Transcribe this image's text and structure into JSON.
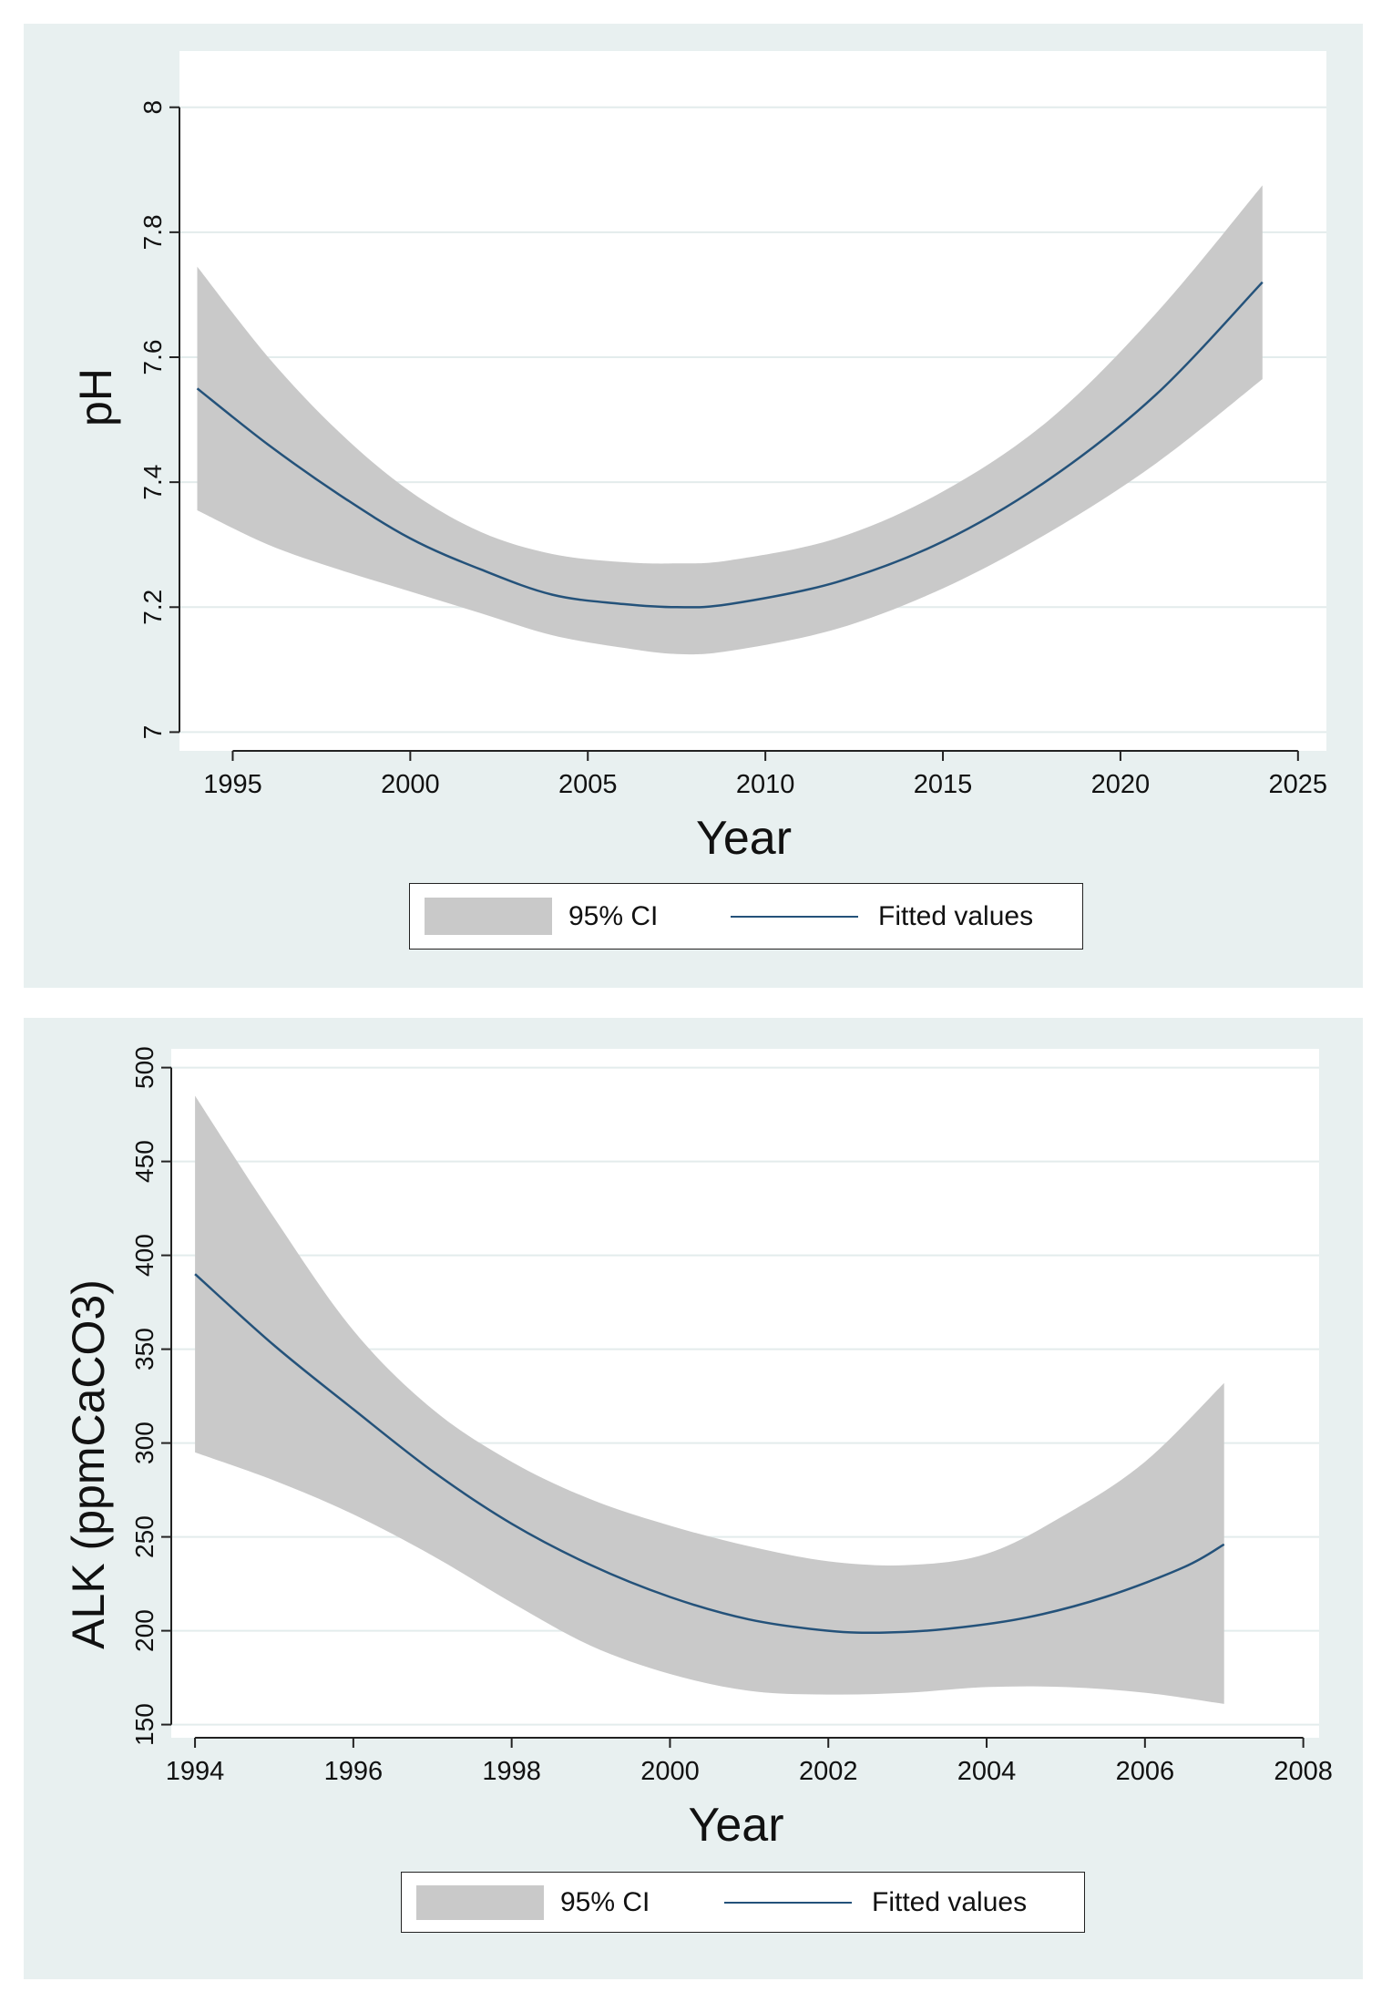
{
  "chart_data": [
    {
      "type": "line",
      "xlabel": "Year",
      "ylabel": "pH",
      "xlim": [
        1993.5,
        2025.8
      ],
      "ylim": [
        6.97,
        8.09
      ],
      "xticks": [
        1995,
        2000,
        2005,
        2010,
        2015,
        2020,
        2025
      ],
      "xtick_labels": [
        "1995",
        "2000",
        "2005",
        "2010",
        "2015",
        "2020",
        "2025"
      ],
      "yticks": [
        7,
        7.2,
        7.4,
        7.6,
        7.8,
        8
      ],
      "ytick_labels": [
        "7",
        "7.2",
        "7.4",
        "7.6",
        "7.8",
        "8"
      ],
      "grid": true,
      "legend": {
        "position": "bottom",
        "ci_label": "95% CI",
        "fit_label": "Fitted values"
      },
      "series": [
        {
          "name": "Fitted values",
          "x": [
            1994,
            1996,
            1998,
            2000,
            2002,
            2004,
            2006,
            2007.5,
            2009,
            2012,
            2015,
            2018,
            2021,
            2024
          ],
          "y": [
            7.55,
            7.46,
            7.38,
            7.31,
            7.26,
            7.22,
            7.205,
            7.2,
            7.205,
            7.24,
            7.305,
            7.405,
            7.54,
            7.72
          ]
        },
        {
          "name": "95% CI upper",
          "x": [
            1994,
            1996,
            1998,
            2000,
            2002,
            2004,
            2006,
            2007.5,
            2009,
            2012,
            2015,
            2018,
            2021,
            2024
          ],
          "y": [
            7.745,
            7.6,
            7.48,
            7.385,
            7.32,
            7.285,
            7.272,
            7.27,
            7.275,
            7.31,
            7.385,
            7.5,
            7.67,
            7.875
          ]
        },
        {
          "name": "95% CI lower",
          "x": [
            1994,
            1996,
            1998,
            2000,
            2002,
            2004,
            2006,
            2007.5,
            2009,
            2012,
            2015,
            2018,
            2021,
            2024
          ],
          "y": [
            7.355,
            7.3,
            7.26,
            7.225,
            7.19,
            7.155,
            7.135,
            7.125,
            7.13,
            7.165,
            7.23,
            7.32,
            7.43,
            7.565
          ]
        }
      ]
    },
    {
      "type": "line",
      "xlabel": "Year",
      "ylabel": "ALK (ppmCaCO3)",
      "xlim": [
        1993.7,
        2008.2
      ],
      "ylim": [
        143,
        510
      ],
      "xticks": [
        1994,
        1996,
        1998,
        2000,
        2002,
        2004,
        2006,
        2008
      ],
      "xtick_labels": [
        "1994",
        "1996",
        "1998",
        "2000",
        "2002",
        "2004",
        "2006",
        "2008"
      ],
      "yticks": [
        150,
        200,
        250,
        300,
        350,
        400,
        450,
        500
      ],
      "ytick_labels": [
        "150",
        "200",
        "250",
        "300",
        "350",
        "400",
        "450",
        "500"
      ],
      "grid": true,
      "legend": {
        "position": "bottom",
        "ci_label": "95% CI",
        "fit_label": "Fitted values"
      },
      "series": [
        {
          "name": "Fitted values",
          "x": [
            1994,
            1995,
            1996,
            1997,
            1998,
            1999,
            2000,
            2001,
            2002,
            2002.7,
            2003.5,
            2004.5,
            2005.5,
            2006.5,
            2007
          ],
          "y": [
            390,
            352,
            318,
            285,
            257,
            235,
            218,
            206,
            200,
            199,
            201,
            207,
            218,
            234,
            246
          ]
        },
        {
          "name": "95% CI upper",
          "x": [
            1994,
            1995,
            1996,
            1997,
            1998,
            1999,
            2000,
            2001,
            2002,
            2003,
            2004,
            2005,
            2006,
            2007
          ],
          "y": [
            485,
            420,
            360,
            318,
            290,
            270,
            256,
            245,
            237,
            235,
            241,
            262,
            290,
            332
          ]
        },
        {
          "name": "95% CI lower",
          "x": [
            1994,
            1995,
            1996,
            1997,
            1998,
            1999,
            2000,
            2001,
            2002,
            2003,
            2004,
            2005,
            2006,
            2007
          ],
          "y": [
            295,
            280,
            262,
            240,
            215,
            192,
            177,
            168,
            166,
            167,
            170,
            170,
            167,
            161
          ]
        }
      ]
    }
  ]
}
